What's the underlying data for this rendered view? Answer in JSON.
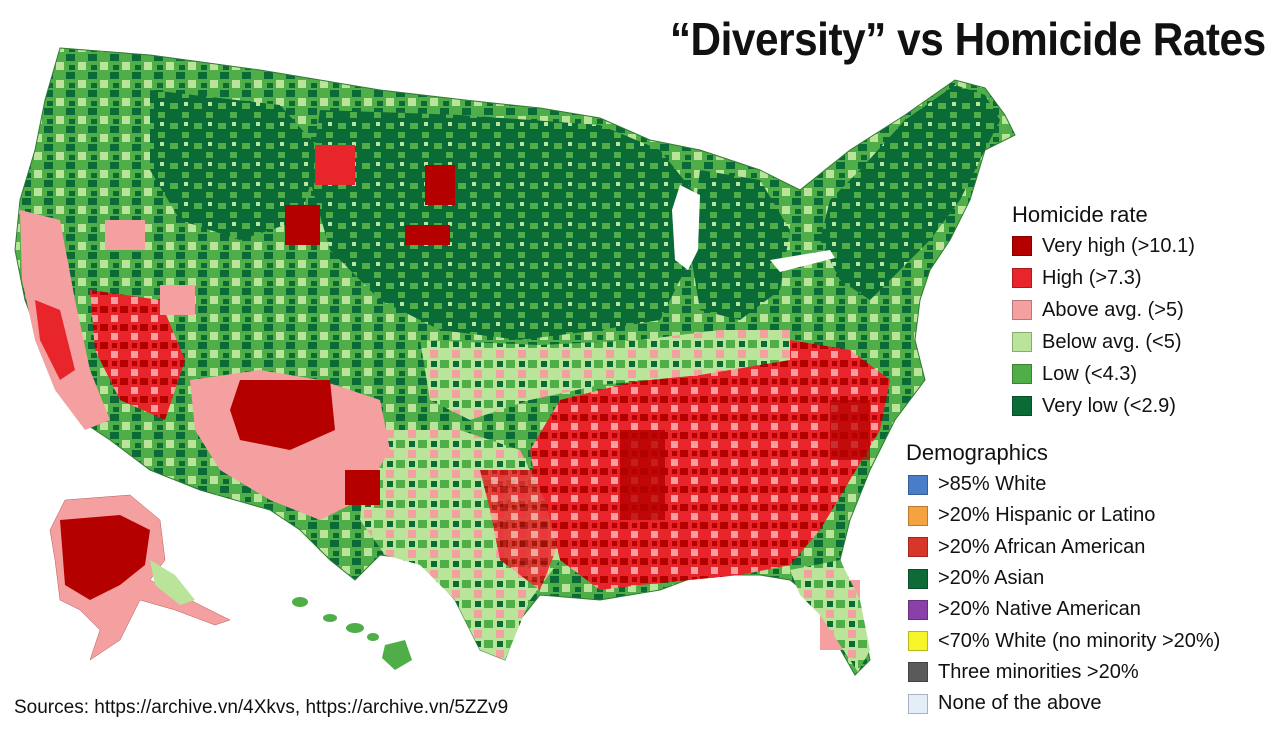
{
  "title": "“Diversity” vs Homicide Rates",
  "homicide_legend": {
    "heading": "Homicide rate",
    "items": [
      {
        "label": "Very high (>10.1)",
        "color": "#b50000"
      },
      {
        "label": "High (>7.3)",
        "color": "#e8252a"
      },
      {
        "label": "Above avg. (>5)",
        "color": "#f4a0a0"
      },
      {
        "label": "Below avg. (<5)",
        "color": "#b9e49a"
      },
      {
        "label": "Low (<4.3)",
        "color": "#4fae47"
      },
      {
        "label": "Very low (<2.9)",
        "color": "#0a6b36"
      }
    ]
  },
  "demographics_legend": {
    "heading": "Demographics",
    "items": [
      {
        "label": ">85% White",
        "color": "#4a7dc8"
      },
      {
        "label": ">20% Hispanic or Latino",
        "color": "#f4a340"
      },
      {
        "label": ">20% African American",
        "color": "#d9362a"
      },
      {
        "label": ">20% Asian",
        "color": "#0e6b38"
      },
      {
        "label": ">20% Native American",
        "color": "#8b3fa8"
      },
      {
        "label": "<70% White (no minority >20%)",
        "color": "#f5f52a"
      },
      {
        "label": "Three minorities >20%",
        "color": "#5a5a5a"
      },
      {
        "label": "None of the above",
        "color": "#e4eef9"
      }
    ]
  },
  "sources": "Sources: https://archive.vn/4Xkvs, https://archive.vn/5ZZv9"
}
